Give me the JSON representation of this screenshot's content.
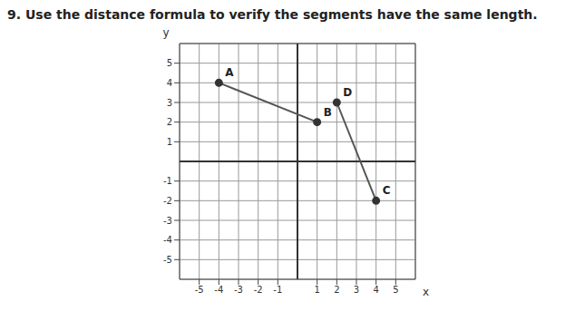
{
  "chart_data": {
    "type": "line",
    "title": "9. Use the distance formula to verify the segments have the same length.",
    "x_label": "x",
    "y_label": "y",
    "series": [
      {
        "x": [
          -4,
          1
        ],
        "values": [
          4,
          2
        ],
        "point_labels": [
          "A",
          "B"
        ]
      },
      {
        "x": [
          2,
          4
        ],
        "values": [
          3,
          -2
        ],
        "point_labels": [
          "D",
          "C"
        ]
      }
    ],
    "color": "#555555",
    "marker": "circle",
    "xlim": [
      -6,
      6
    ],
    "ylim": [
      -6,
      6
    ],
    "xticks": [
      -5,
      -4,
      -3,
      -2,
      -1,
      1,
      2,
      3,
      4,
      5
    ],
    "yticks": [
      -5,
      -4,
      -3,
      -2,
      -1,
      1,
      2,
      3,
      4,
      5
    ],
    "grid": true
  }
}
